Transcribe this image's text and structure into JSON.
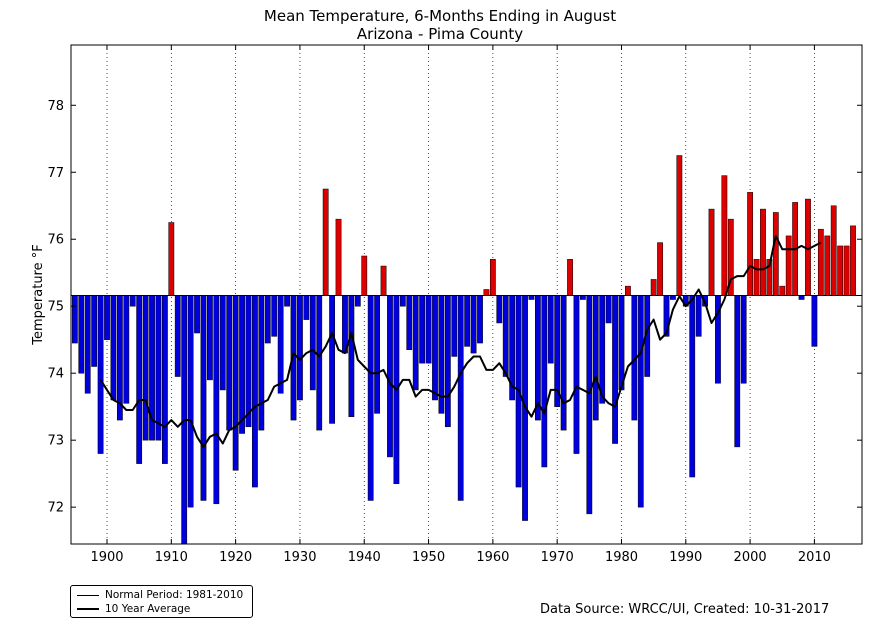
{
  "chart_data": {
    "type": "bar",
    "title": "Mean Temperature, 6-Months Ending in August",
    "subtitle": "Arizona - Pima County",
    "xlabel": "",
    "ylabel": "Temperature °F",
    "xlim": [
      1894.4,
      2017.4
    ],
    "ylim": [
      71.45,
      78.9
    ],
    "baseline": 75.16,
    "grid": {
      "x": true,
      "y": false
    },
    "x_ticks": [
      1900,
      1910,
      1920,
      1930,
      1940,
      1950,
      1960,
      1970,
      1980,
      1990,
      2000,
      2010
    ],
    "y_ticks": [
      72,
      73,
      74,
      75,
      76,
      77,
      78
    ],
    "colors": {
      "above": "#dd0000",
      "below": "#0000dd",
      "average_line": "#000000"
    },
    "years": [
      1895,
      1896,
      1897,
      1898,
      1899,
      1900,
      1901,
      1902,
      1903,
      1904,
      1905,
      1906,
      1907,
      1908,
      1909,
      1910,
      1911,
      1912,
      1913,
      1914,
      1915,
      1916,
      1917,
      1918,
      1919,
      1920,
      1921,
      1922,
      1923,
      1924,
      1925,
      1926,
      1927,
      1928,
      1929,
      1930,
      1931,
      1932,
      1933,
      1934,
      1935,
      1936,
      1937,
      1938,
      1939,
      1940,
      1941,
      1942,
      1943,
      1944,
      1945,
      1946,
      1947,
      1948,
      1949,
      1950,
      1951,
      1952,
      1953,
      1954,
      1955,
      1956,
      1957,
      1958,
      1959,
      1960,
      1961,
      1962,
      1963,
      1964,
      1965,
      1966,
      1967,
      1968,
      1969,
      1970,
      1971,
      1972,
      1973,
      1974,
      1975,
      1976,
      1977,
      1978,
      1979,
      1980,
      1981,
      1982,
      1983,
      1984,
      1985,
      1986,
      1987,
      1988,
      1989,
      1990,
      1991,
      1992,
      1993,
      1994,
      1995,
      1996,
      1997,
      1998,
      1999,
      2000,
      2001,
      2002,
      2003,
      2004,
      2005,
      2006,
      2007,
      2008,
      2009,
      2010,
      2011,
      2012,
      2013,
      2014,
      2015,
      2016
    ],
    "values": [
      74.45,
      74.0,
      73.7,
      74.1,
      72.8,
      74.5,
      73.6,
      73.3,
      73.55,
      75.0,
      72.65,
      73.0,
      73.0,
      73.0,
      72.65,
      76.25,
      73.95,
      71.45,
      72.0,
      74.6,
      72.1,
      73.9,
      72.05,
      73.75,
      73.15,
      72.55,
      73.1,
      73.2,
      72.3,
      73.15,
      74.45,
      74.55,
      73.7,
      75.0,
      73.3,
      73.6,
      74.8,
      73.75,
      73.15,
      76.75,
      73.25,
      76.3,
      74.3,
      73.35,
      75.0,
      75.75,
      72.1,
      73.4,
      75.6,
      72.75,
      72.35,
      75.0,
      74.35,
      73.75,
      74.15,
      74.15,
      73.6,
      73.4,
      73.2,
      74.25,
      72.1,
      74.4,
      74.3,
      74.45,
      75.25,
      75.7,
      74.75,
      73.95,
      73.6,
      72.3,
      71.8,
      75.1,
      73.3,
      72.6,
      74.15,
      73.5,
      73.15,
      75.7,
      72.8,
      75.1,
      71.9,
      73.3,
      73.55,
      74.75,
      72.95,
      73.75,
      75.3,
      73.3,
      72.0,
      73.95,
      75.4,
      75.95,
      74.55,
      75.1,
      77.25,
      75.0,
      72.45,
      74.55,
      75.0,
      76.45,
      73.85,
      76.95,
      76.3,
      72.9,
      73.85,
      76.7,
      75.7,
      76.45,
      75.7,
      76.4,
      75.3,
      76.05,
      76.55,
      75.1,
      76.6,
      74.4,
      76.15,
      76.05,
      76.5,
      75.9,
      75.9,
      76.2
    ],
    "series": [
      {
        "name": "10 Year Average",
        "x": [
          1899,
          1900,
          1901,
          1902,
          1903,
          1904,
          1905,
          1906,
          1907,
          1908,
          1909,
          1910,
          1911,
          1912,
          1913,
          1914,
          1915,
          1916,
          1917,
          1918,
          1919,
          1920,
          1921,
          1922,
          1923,
          1924,
          1925,
          1926,
          1927,
          1928,
          1929,
          1930,
          1931,
          1932,
          1933,
          1934,
          1935,
          1936,
          1937,
          1938,
          1939,
          1940,
          1941,
          1942,
          1943,
          1944,
          1945,
          1946,
          1947,
          1948,
          1949,
          1950,
          1951,
          1952,
          1953,
          1954,
          1955,
          1956,
          1957,
          1958,
          1959,
          1960,
          1961,
          1962,
          1963,
          1964,
          1965,
          1966,
          1967,
          1968,
          1969,
          1970,
          1971,
          1972,
          1973,
          1974,
          1975,
          1976,
          1977,
          1978,
          1979,
          1980,
          1981,
          1982,
          1983,
          1984,
          1985,
          1986,
          1987,
          1988,
          1989,
          1990,
          1991,
          1992,
          1993,
          1994,
          1995,
          1996,
          1997,
          1998,
          1999,
          2000,
          2001,
          2002,
          2003,
          2004,
          2005,
          2006,
          2007,
          2008,
          2009,
          2010,
          2011
        ],
        "values": [
          73.9,
          73.75,
          73.6,
          73.55,
          73.45,
          73.45,
          73.6,
          73.6,
          73.3,
          73.25,
          73.2,
          73.3,
          73.2,
          73.3,
          73.3,
          73.05,
          72.9,
          73.05,
          73.1,
          72.95,
          73.15,
          73.2,
          73.3,
          73.4,
          73.5,
          73.55,
          73.6,
          73.8,
          73.85,
          73.9,
          74.3,
          74.2,
          74.3,
          74.35,
          74.25,
          74.4,
          74.6,
          74.35,
          74.3,
          74.6,
          74.2,
          74.1,
          74.0,
          74.0,
          74.05,
          73.85,
          73.75,
          73.9,
          73.9,
          73.65,
          73.75,
          73.75,
          73.7,
          73.65,
          73.65,
          73.8,
          74.0,
          74.15,
          74.25,
          74.25,
          74.05,
          74.05,
          74.15,
          74.0,
          73.8,
          73.75,
          73.5,
          73.35,
          73.55,
          73.4,
          73.75,
          73.75,
          73.55,
          73.6,
          73.8,
          73.75,
          73.7,
          73.95,
          73.65,
          73.55,
          73.5,
          73.8,
          74.1,
          74.2,
          74.3,
          74.65,
          74.8,
          74.5,
          74.6,
          74.95,
          75.15,
          75.0,
          75.1,
          75.25,
          75.05,
          74.75,
          74.9,
          75.1,
          75.4,
          75.45,
          75.45,
          75.6,
          75.55,
          75.55,
          75.6,
          76.05,
          75.85,
          75.85,
          75.85,
          75.9,
          75.85,
          75.9,
          75.95
        ]
      }
    ]
  },
  "legend": {
    "items": [
      {
        "label": "Normal Period: 1981-2010"
      },
      {
        "label": "10 Year Average"
      }
    ]
  },
  "footer": {
    "source": "Data Source: WRCC/UI, Created: 10-31-2017"
  }
}
